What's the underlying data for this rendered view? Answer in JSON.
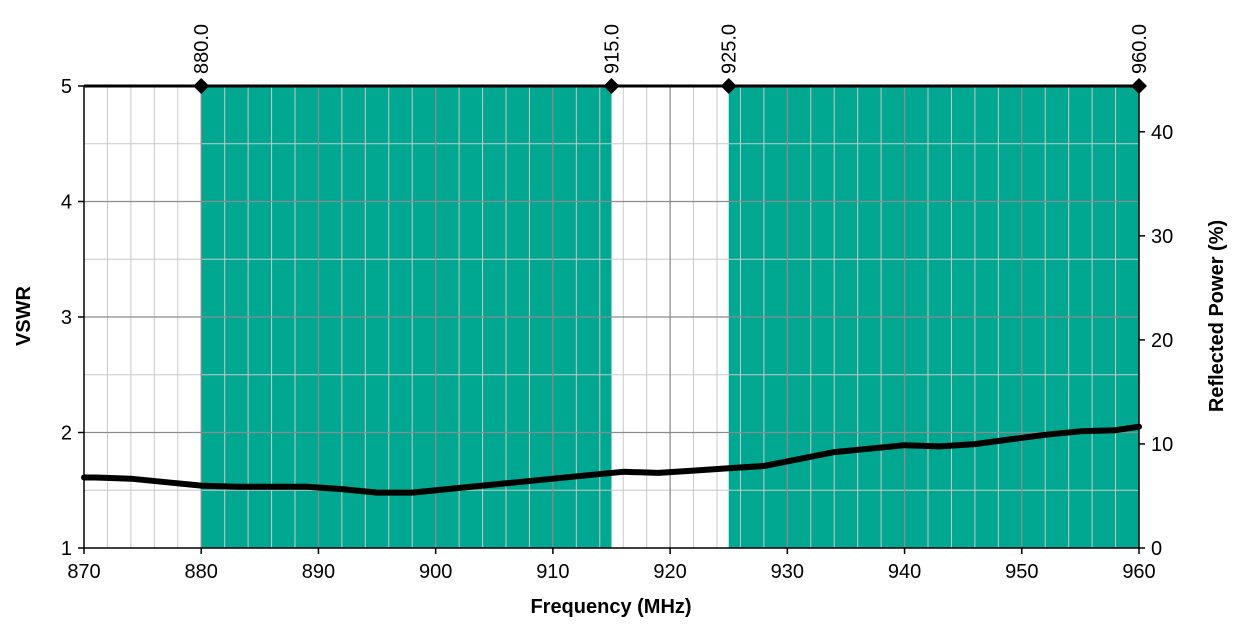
{
  "chart_data": {
    "type": "line",
    "xlabel": "Frequency (MHz)",
    "ylabel": "VSWR",
    "y2label": "Reflected Power (%)",
    "xlim": [
      870,
      960
    ],
    "ylim": [
      1,
      5
    ],
    "y2lim": [
      0,
      44.4
    ],
    "x_ticks": [
      870,
      880,
      890,
      900,
      910,
      920,
      930,
      940,
      950,
      960
    ],
    "x_tick_labels": [
      "870",
      "880",
      "890",
      "900",
      "910",
      "920",
      "930",
      "940",
      "950",
      "960"
    ],
    "y_ticks": [
      1,
      2,
      3,
      4,
      5
    ],
    "y_tick_labels": [
      "1",
      "2",
      "3",
      "4",
      "5"
    ],
    "y2_ticks": [
      0,
      10,
      20,
      30,
      40
    ],
    "y2_tick_labels": [
      "0",
      "10",
      "20",
      "30",
      "40"
    ],
    "minor_x_step": 2,
    "minor_y_step": 0.5,
    "grid": true,
    "bands": [
      {
        "start": 880.0,
        "end": 915.0,
        "color": "#00a891"
      },
      {
        "start": 925.0,
        "end": 960.0,
        "color": "#00a891"
      }
    ],
    "markers": [
      {
        "x": 880.0,
        "label": "880.0"
      },
      {
        "x": 915.0,
        "label": "915.0"
      },
      {
        "x": 925.0,
        "label": "925.0"
      },
      {
        "x": 960.0,
        "label": "960.0"
      }
    ],
    "series": [
      {
        "color": "#000000",
        "x": [
          870,
          871,
          874,
          877,
          880,
          883,
          886,
          889,
          892,
          895,
          898,
          901,
          904,
          907,
          910,
          913,
          916,
          919,
          922,
          925,
          928,
          931,
          934,
          937,
          940,
          943,
          946,
          949,
          952,
          955,
          958,
          960
        ],
        "values": [
          1.61,
          1.61,
          1.6,
          1.57,
          1.54,
          1.53,
          1.53,
          1.53,
          1.51,
          1.48,
          1.48,
          1.51,
          1.54,
          1.57,
          1.6,
          1.63,
          1.66,
          1.65,
          1.67,
          1.69,
          1.71,
          1.77,
          1.83,
          1.86,
          1.89,
          1.88,
          1.9,
          1.94,
          1.98,
          2.01,
          2.02,
          2.05
        ]
      }
    ]
  }
}
